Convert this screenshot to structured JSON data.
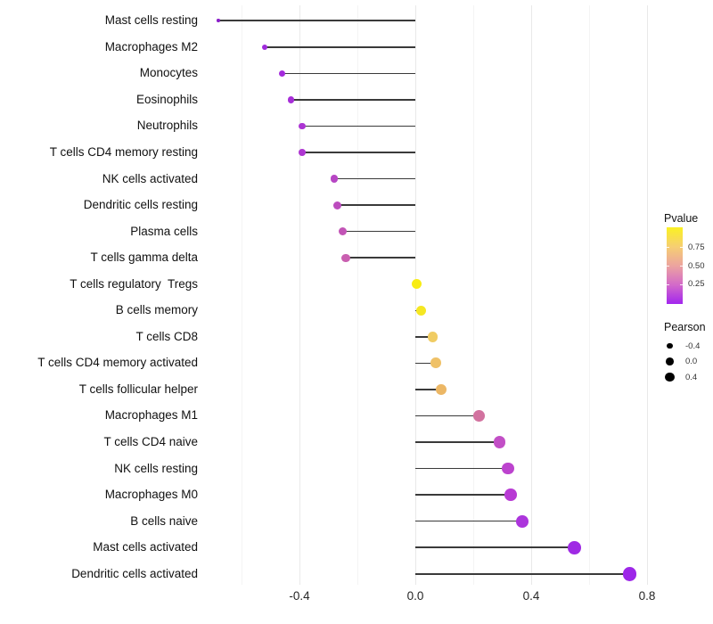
{
  "chart_data": {
    "type": "scatter",
    "style": "lollipop",
    "title": "",
    "xlabel": "",
    "ylabel": "",
    "xlim": [
      -0.72,
      0.86
    ],
    "x_major_ticks": [
      -0.4,
      0.0,
      0.4,
      0.8
    ],
    "x_tick_labels": [
      "-0.4",
      "0.0",
      "0.4",
      "0.8"
    ],
    "x_minor_gridlines": [
      -0.6,
      -0.2,
      0.2,
      0.6
    ],
    "grid": "vertical-only",
    "legend_position": "right",
    "points": [
      {
        "label": "Mast cells resting",
        "pearson": -0.68,
        "color": "#8A1FC9"
      },
      {
        "label": "Macrophages M2",
        "pearson": -0.52,
        "color": "#9F2BDB"
      },
      {
        "label": "Monocytes",
        "pearson": -0.46,
        "color": "#A42BDC"
      },
      {
        "label": "Eosinophils",
        "pearson": -0.43,
        "color": "#A72ED8"
      },
      {
        "label": "Neutrophils",
        "pearson": -0.39,
        "color": "#AC34D3"
      },
      {
        "label": "T cells CD4 memory resting",
        "pearson": -0.39,
        "color": "#AE36D1"
      },
      {
        "label": "NK cells activated",
        "pearson": -0.28,
        "color": "#B746C4"
      },
      {
        "label": "Dendritic cells resting",
        "pearson": -0.27,
        "color": "#BC4CBE"
      },
      {
        "label": "Plasma cells",
        "pearson": -0.25,
        "color": "#C254B6"
      },
      {
        "label": "T cells gamma delta",
        "pearson": -0.24,
        "color": "#C95FB0"
      },
      {
        "label": "T cells regulatory  Tregs",
        "pearson": 0.005,
        "color": "#F8EC13"
      },
      {
        "label": "B cells memory",
        "pearson": 0.02,
        "color": "#F5E722"
      },
      {
        "label": "T cells CD8",
        "pearson": 0.06,
        "color": "#F0CC63"
      },
      {
        "label": "T cells CD4 memory activated",
        "pearson": 0.07,
        "color": "#EFC167"
      },
      {
        "label": "T cells follicular helper",
        "pearson": 0.09,
        "color": "#ECB765"
      },
      {
        "label": "Macrophages M1",
        "pearson": 0.22,
        "color": "#D2729F"
      },
      {
        "label": "T cells CD4 naive",
        "pearson": 0.29,
        "color": "#C24FC6"
      },
      {
        "label": "NK cells resting",
        "pearson": 0.32,
        "color": "#BC43CE"
      },
      {
        "label": "Macrophages M0",
        "pearson": 0.33,
        "color": "#B83BD4"
      },
      {
        "label": "B cells naive",
        "pearson": 0.37,
        "color": "#AC35DC"
      },
      {
        "label": "Mast cells activated",
        "pearson": 0.55,
        "color": "#9F2AE4"
      },
      {
        "label": "Dendritic cells activated",
        "pearson": 0.74,
        "color": "#9D27E8"
      }
    ]
  },
  "legend": {
    "pvalue": {
      "title": "Pvalue",
      "tick_labels": [
        "0.75",
        "0.50",
        "0.25"
      ],
      "gradient_top_to_bottom": [
        "#FAF122",
        "#F6CF72",
        "#ECA49F",
        "#D36AC9",
        "#A226EE"
      ]
    },
    "pearson": {
      "title": "Pearson",
      "items": [
        {
          "label": "-0.4",
          "value": -0.4
        },
        {
          "label": "0.0",
          "value": 0.0
        },
        {
          "label": "0.4",
          "value": 0.4
        }
      ]
    }
  },
  "colors": {
    "background": "#FFFFFF",
    "stem": "#3A3A3A",
    "grid_major": "#E9E9E9",
    "grid_minor": "#F4F4F4",
    "axis_text": "#262626"
  }
}
